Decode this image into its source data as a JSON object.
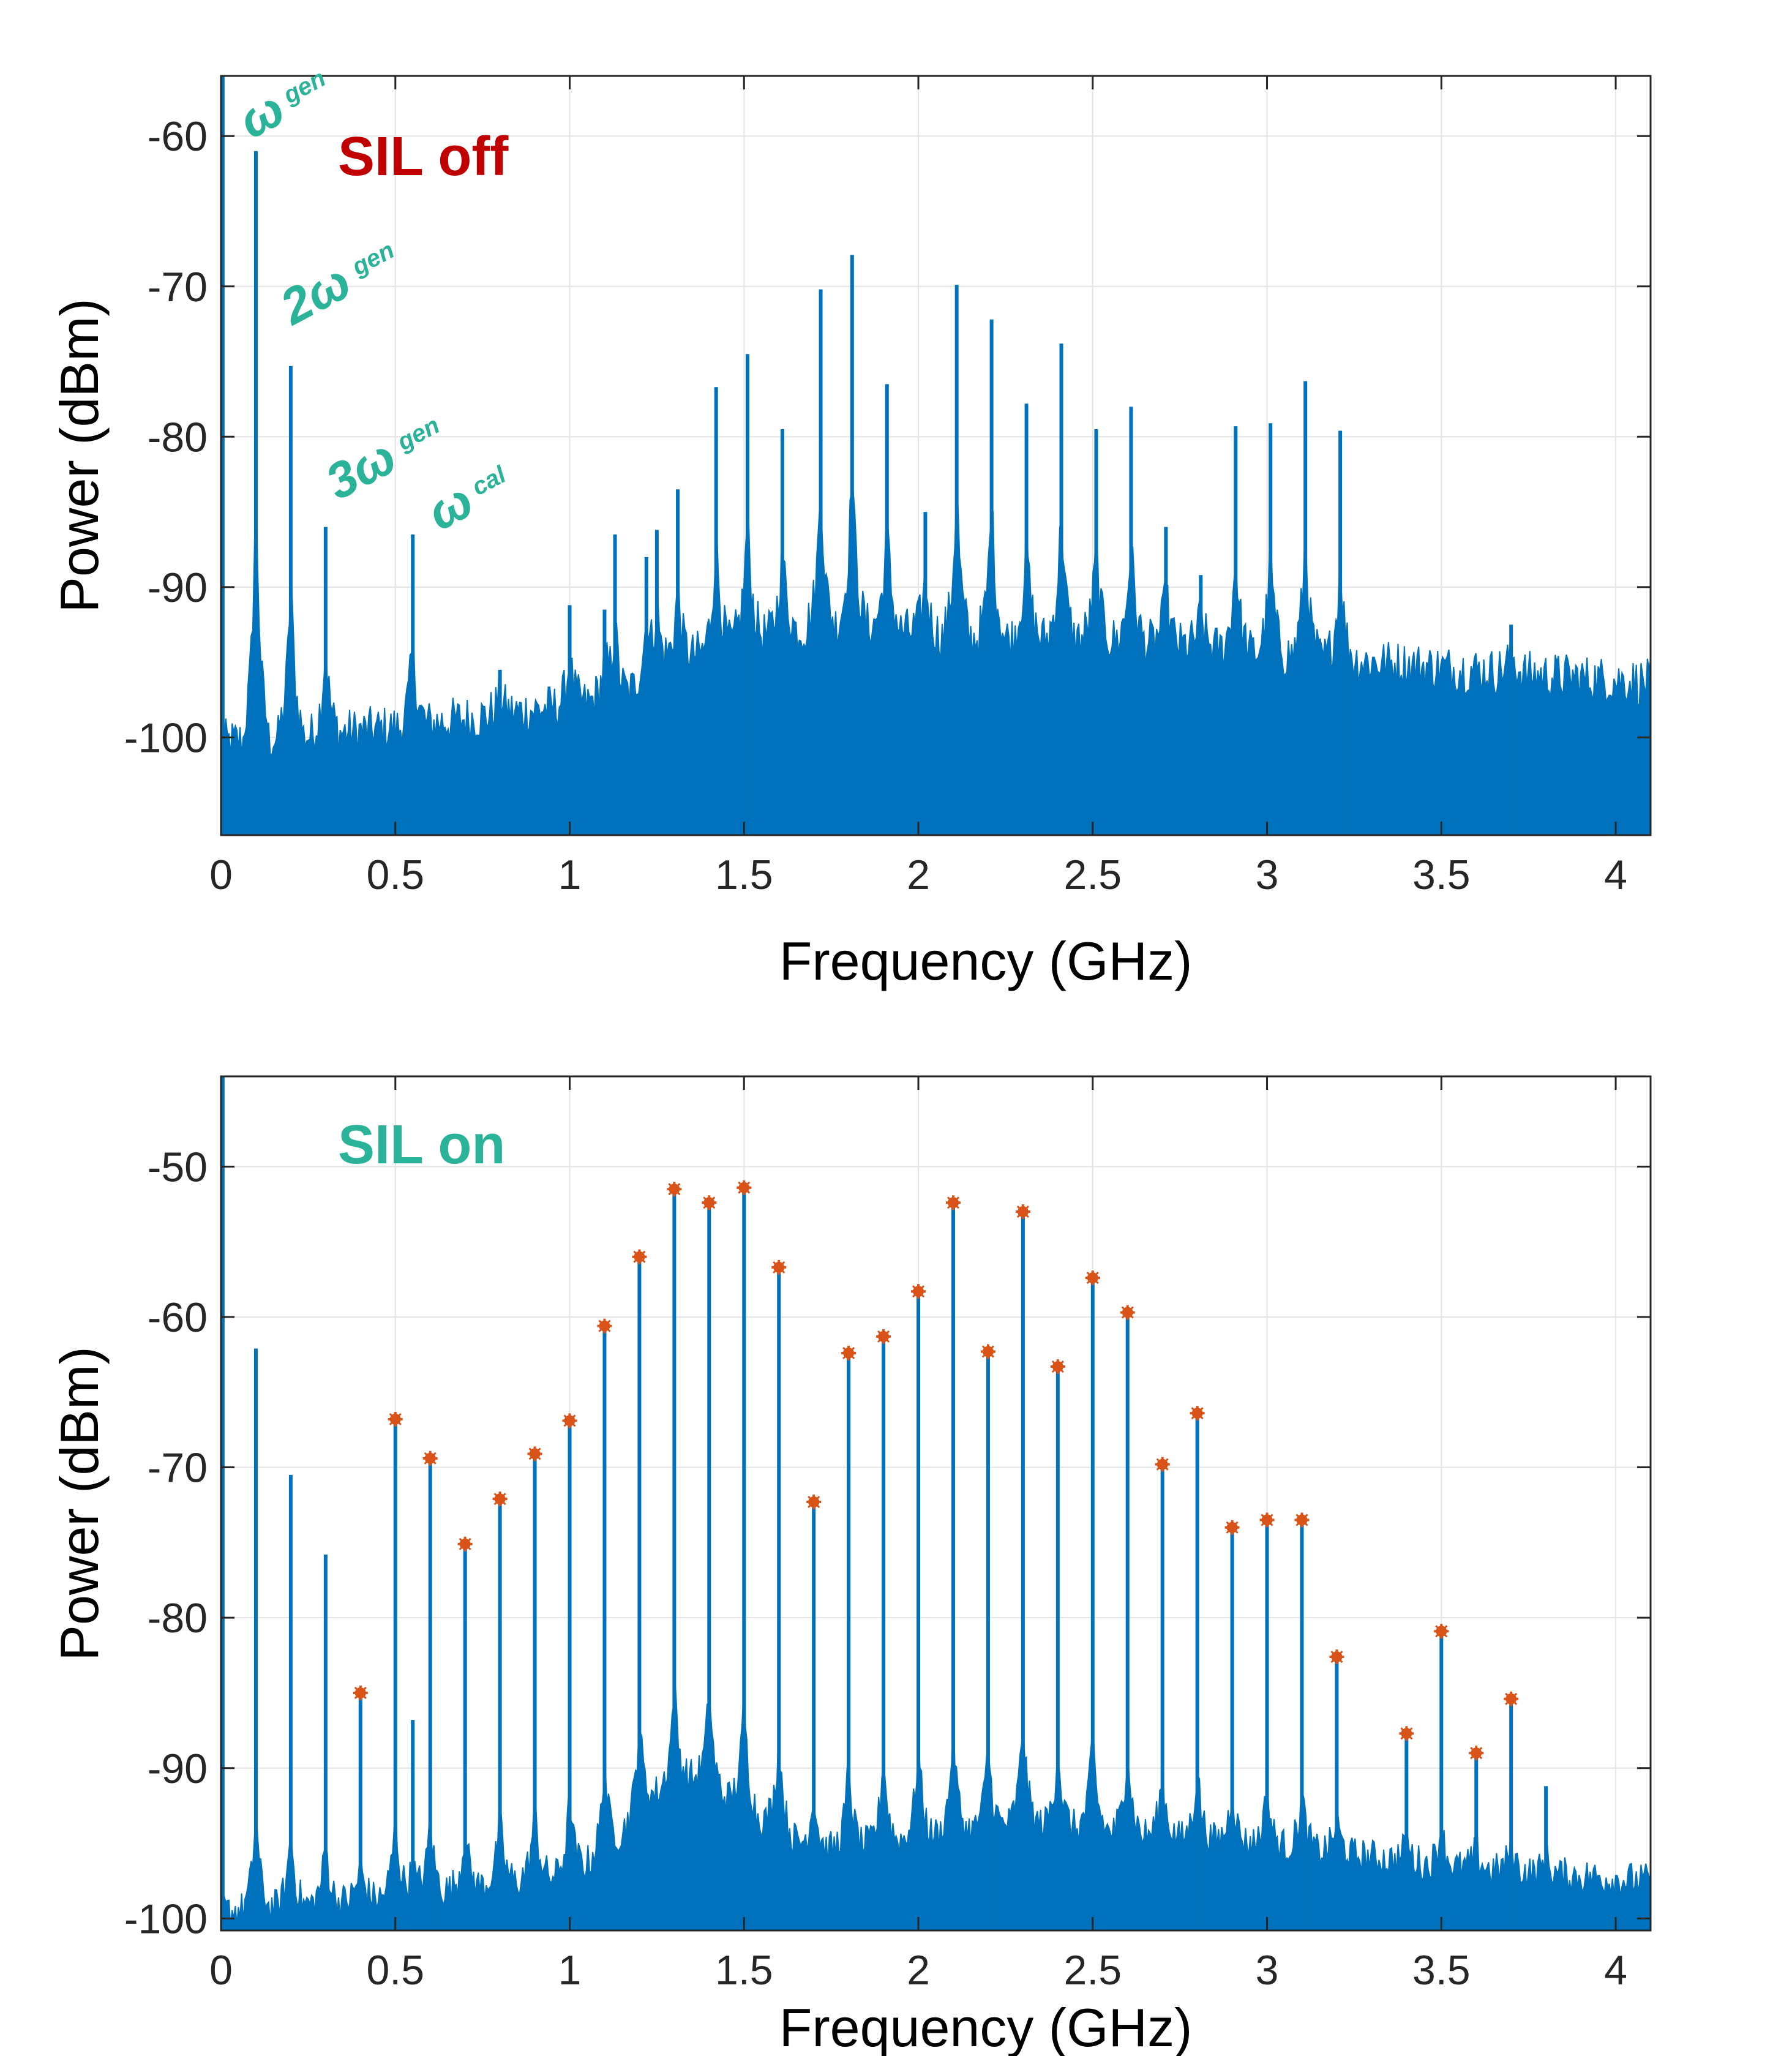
{
  "chart_data": [
    {
      "type": "line",
      "panel": "top",
      "title": "",
      "xlabel": "Frequency (GHz)",
      "ylabel": "Power (dBm)",
      "xlim": [
        0,
        4.1
      ],
      "ylim": [
        -106.5,
        -56
      ],
      "xticks": [
        0,
        0.5,
        1,
        1.5,
        2,
        2.5,
        3,
        3.5,
        4
      ],
      "xtick_labels": [
        "0",
        "0.5",
        "1",
        "1.5",
        "2",
        "2.5",
        "3",
        "3.5",
        "4"
      ],
      "yticks": [
        -100,
        -90,
        -80,
        -70,
        -60
      ],
      "ytick_labels": [
        "-100",
        "-90",
        "-80",
        "-70",
        "-60"
      ],
      "grid": true,
      "line_color": "#0072bd",
      "marker_color": "#d95319",
      "status_title": "SIL off",
      "status_color": "#c00000",
      "annotations": [
        {
          "main": "ω",
          "sub": "gen",
          "target_x": 0.1
        },
        {
          "main": "2ω",
          "sub": "gen",
          "target_x": 0.2
        },
        {
          "main": "3ω",
          "sub": "gen",
          "target_x": 0.3
        },
        {
          "main": "ω",
          "sub": "cal",
          "target_x": 0.55
        }
      ],
      "noise_floor": [
        [
          0,
          -101
        ],
        [
          0.5,
          -100
        ],
        [
          1.0,
          -98.5
        ],
        [
          1.15,
          -98
        ],
        [
          1.25,
          -96
        ],
        [
          1.5,
          -94
        ],
        [
          1.8,
          -93
        ],
        [
          2.1,
          -94
        ],
        [
          2.5,
          -94
        ],
        [
          3.0,
          -95
        ],
        [
          3.5,
          -96
        ],
        [
          4.1,
          -97
        ]
      ],
      "peaks": [
        {
          "x": 0.1,
          "y": -61
        },
        {
          "x": 0.2,
          "y": -75.3
        },
        {
          "x": 0.3,
          "y": -86
        },
        {
          "x": 0.55,
          "y": -86.5
        },
        {
          "x": 0.8,
          "y": -95.5
        },
        {
          "x": 1.0,
          "y": -91.2
        },
        {
          "x": 1.1,
          "y": -91.5
        },
        {
          "x": 1.13,
          "y": -86.5
        },
        {
          "x": 1.22,
          "y": -88
        },
        {
          "x": 1.25,
          "y": -86.2
        },
        {
          "x": 1.31,
          "y": -83.5
        },
        {
          "x": 1.42,
          "y": -76.7
        },
        {
          "x": 1.51,
          "y": -74.5
        },
        {
          "x": 1.61,
          "y": -79.5
        },
        {
          "x": 1.72,
          "y": -70.2
        },
        {
          "x": 1.81,
          "y": -67.9
        },
        {
          "x": 1.91,
          "y": -76.5
        },
        {
          "x": 2.02,
          "y": -85
        },
        {
          "x": 2.11,
          "y": -69.9
        },
        {
          "x": 2.21,
          "y": -72.2
        },
        {
          "x": 2.31,
          "y": -77.8
        },
        {
          "x": 2.41,
          "y": -73.8
        },
        {
          "x": 2.51,
          "y": -79.5
        },
        {
          "x": 2.61,
          "y": -78
        },
        {
          "x": 2.71,
          "y": -86
        },
        {
          "x": 2.81,
          "y": -89.2
        },
        {
          "x": 2.91,
          "y": -79.3
        },
        {
          "x": 3.01,
          "y": -79.1
        },
        {
          "x": 3.11,
          "y": -76.3
        },
        {
          "x": 3.21,
          "y": -79.6
        },
        {
          "x": 3.7,
          "y": -92.5
        }
      ]
    },
    {
      "type": "line",
      "panel": "bottom",
      "title": "",
      "xlabel": "Frequency (GHz)",
      "ylabel": "Power (dBm)",
      "xlim": [
        0,
        4.1
      ],
      "ylim": [
        -100.8,
        -44
      ],
      "xticks": [
        0,
        0.5,
        1,
        1.5,
        2,
        2.5,
        3,
        3.5,
        4
      ],
      "xtick_labels": [
        "0",
        "0.5",
        "1",
        "1.5",
        "2",
        "2.5",
        "3",
        "3.5",
        "4"
      ],
      "yticks": [
        -100,
        -90,
        -80,
        -70,
        -60,
        -50
      ],
      "ytick_labels": [
        "-100",
        "-90",
        "-80",
        "-70",
        "-60",
        "-50"
      ],
      "grid": true,
      "line_color": "#0072bd",
      "marker_color": "#d95319",
      "status_title": "SIL on",
      "status_color": "#2bb39a",
      "noise_floor": [
        [
          0,
          -100
        ],
        [
          0.5,
          -99
        ],
        [
          1.0,
          -97.5
        ],
        [
          1.1,
          -96
        ],
        [
          1.25,
          -92
        ],
        [
          1.35,
          -91
        ],
        [
          1.5,
          -93
        ],
        [
          1.7,
          -96
        ],
        [
          2.0,
          -95
        ],
        [
          2.3,
          -94
        ],
        [
          2.7,
          -95
        ],
        [
          3.0,
          -95.5
        ],
        [
          3.5,
          -97
        ],
        [
          4.1,
          -98
        ]
      ],
      "peaks": [
        {
          "x": 0.1,
          "y": -62.1,
          "marked": false
        },
        {
          "x": 0.2,
          "y": -70.5,
          "marked": false
        },
        {
          "x": 0.3,
          "y": -75.8,
          "marked": false
        },
        {
          "x": 0.4,
          "y": -85,
          "marked": true
        },
        {
          "x": 0.5,
          "y": -66.8,
          "marked": true
        },
        {
          "x": 0.55,
          "y": -86.8,
          "marked": false
        },
        {
          "x": 0.6,
          "y": -69.4,
          "marked": true
        },
        {
          "x": 0.7,
          "y": -75.1,
          "marked": true
        },
        {
          "x": 0.8,
          "y": -72.1,
          "marked": true
        },
        {
          "x": 0.9,
          "y": -69.1,
          "marked": true
        },
        {
          "x": 1.0,
          "y": -66.9,
          "marked": true
        },
        {
          "x": 1.1,
          "y": -60.6,
          "marked": true
        },
        {
          "x": 1.2,
          "y": -56,
          "marked": true
        },
        {
          "x": 1.3,
          "y": -51.5,
          "marked": true
        },
        {
          "x": 1.4,
          "y": -52.4,
          "marked": true
        },
        {
          "x": 1.5,
          "y": -51.4,
          "marked": true
        },
        {
          "x": 1.6,
          "y": -56.7,
          "marked": true
        },
        {
          "x": 1.7,
          "y": -72.3,
          "marked": true
        },
        {
          "x": 1.8,
          "y": -62.4,
          "marked": true
        },
        {
          "x": 1.9,
          "y": -61.3,
          "marked": true
        },
        {
          "x": 2.0,
          "y": -58.3,
          "marked": true
        },
        {
          "x": 2.1,
          "y": -52.4,
          "marked": true
        },
        {
          "x": 2.2,
          "y": -62.3,
          "marked": true
        },
        {
          "x": 2.3,
          "y": -53,
          "marked": true
        },
        {
          "x": 2.4,
          "y": -63.3,
          "marked": true
        },
        {
          "x": 2.5,
          "y": -57.4,
          "marked": true
        },
        {
          "x": 2.6,
          "y": -59.7,
          "marked": true
        },
        {
          "x": 2.7,
          "y": -69.8,
          "marked": true
        },
        {
          "x": 2.8,
          "y": -66.4,
          "marked": true
        },
        {
          "x": 2.9,
          "y": -74,
          "marked": true
        },
        {
          "x": 3.0,
          "y": -73.5,
          "marked": true
        },
        {
          "x": 3.1,
          "y": -73.5,
          "marked": true
        },
        {
          "x": 3.2,
          "y": -82.6,
          "marked": true
        },
        {
          "x": 3.4,
          "y": -87.7,
          "marked": true
        },
        {
          "x": 3.5,
          "y": -80.9,
          "marked": true
        },
        {
          "x": 3.6,
          "y": -89,
          "marked": true
        },
        {
          "x": 3.7,
          "y": -85.4,
          "marked": true
        },
        {
          "x": 3.8,
          "y": -91.2,
          "marked": false
        }
      ]
    }
  ]
}
